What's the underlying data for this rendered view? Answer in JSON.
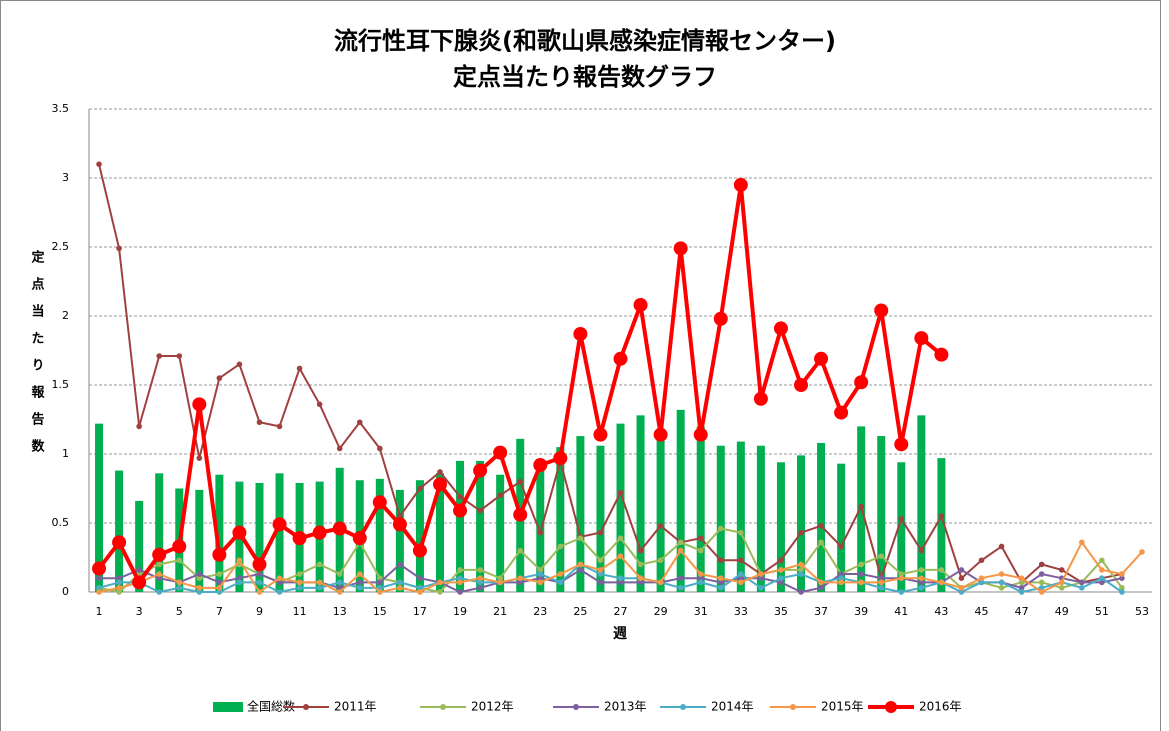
{
  "chart_data": {
    "type": "combo",
    "title": "流行性耳下腺炎(和歌山県感染症情報センター)",
    "subtitle": "定点当たり報告数グラフ",
    "y_label": "定点当たり報告数",
    "x_label": "週",
    "categories": [
      "1",
      null,
      "3",
      null,
      "5",
      null,
      "7",
      null,
      "9",
      null,
      "11",
      null,
      "13",
      null,
      "15",
      null,
      "17",
      null,
      "19",
      null,
      "21",
      null,
      "23",
      null,
      "25",
      null,
      "27",
      null,
      "29",
      null,
      "31",
      null,
      "33",
      null,
      "35",
      null,
      "37",
      null,
      "39",
      null,
      "41",
      null,
      "43",
      null,
      "45",
      null,
      "47",
      null,
      "49",
      null,
      "51",
      null,
      "53"
    ],
    "ylim": [
      0,
      3.5
    ],
    "yticks": [
      0,
      0.5,
      1,
      1.5,
      2,
      2.5,
      3,
      3.5
    ],
    "grid": true,
    "series": [
      {
        "name": "全国総数",
        "type": "bar",
        "color": "#00b050",
        "values": [
          1.22,
          0.88,
          0.66,
          0.86,
          0.75,
          0.74,
          0.85,
          0.8,
          0.79,
          0.86,
          0.79,
          0.8,
          0.9,
          0.81,
          0.82,
          0.74,
          0.81,
          0.86,
          0.95,
          0.95,
          0.85,
          1.11,
          0.95,
          1.05,
          1.13,
          1.06,
          1.22,
          1.28,
          1.14,
          1.32,
          1.2,
          1.06,
          1.09,
          1.06,
          0.94,
          0.99,
          1.08,
          0.93,
          1.2,
          1.13,
          0.94,
          1.28,
          0.97,
          null,
          null,
          null,
          null,
          null,
          null,
          null,
          null,
          null,
          null
        ]
      },
      {
        "name": "2011年",
        "type": "line",
        "color": "#a0413f",
        "values": [
          3.1,
          2.49,
          1.2,
          1.71,
          1.71,
          0.97,
          1.55,
          1.65,
          1.23,
          1.2,
          1.62,
          1.36,
          1.04,
          1.23,
          1.04,
          0.55,
          0.75,
          0.87,
          0.69,
          0.59,
          0.7,
          0.8,
          0.43,
          0.95,
          0.4,
          0.43,
          0.72,
          0.3,
          0.48,
          0.36,
          0.39,
          0.23,
          0.23,
          0.13,
          0.23,
          0.43,
          0.48,
          0.33,
          0.62,
          0.1,
          0.53,
          0.3,
          0.55,
          0.1,
          0.23,
          0.33,
          0.07,
          0.2,
          0.16,
          0.07,
          0.1,
          0.13,
          null
        ]
      },
      {
        "name": "2012年",
        "type": "line",
        "color": "#9bbb59",
        "values": [
          0.03,
          0.0,
          0.13,
          0.2,
          0.23,
          0.1,
          0.13,
          0.2,
          0.13,
          0.07,
          0.13,
          0.2,
          0.13,
          0.36,
          0.1,
          0.07,
          0.03,
          0.0,
          0.16,
          0.16,
          0.1,
          0.3,
          0.16,
          0.33,
          0.39,
          0.23,
          0.39,
          0.2,
          0.23,
          0.36,
          0.3,
          0.46,
          0.43,
          0.13,
          0.16,
          0.16,
          0.36,
          0.13,
          0.2,
          0.26,
          0.13,
          0.16,
          0.16,
          0.03,
          0.07,
          0.03,
          0.07,
          0.07,
          0.03,
          0.07,
          0.23,
          0.03,
          null
        ]
      },
      {
        "name": "2013年",
        "type": "line",
        "color": "#7d5fa0",
        "values": [
          0.1,
          0.1,
          0.16,
          0.1,
          0.07,
          0.13,
          0.07,
          0.1,
          0.13,
          0.07,
          0.07,
          0.07,
          0.03,
          0.07,
          0.07,
          0.2,
          0.1,
          0.07,
          0.0,
          0.03,
          0.07,
          0.07,
          0.1,
          0.07,
          0.16,
          0.07,
          0.07,
          0.07,
          0.07,
          0.1,
          0.1,
          0.07,
          0.1,
          0.1,
          0.07,
          0.0,
          0.03,
          0.13,
          0.13,
          0.1,
          0.1,
          0.07,
          0.07,
          0.16,
          0.07,
          0.07,
          0.03,
          0.13,
          0.1,
          0.07,
          0.07,
          0.1,
          null
        ]
      },
      {
        "name": "2014年",
        "type": "line",
        "color": "#4bacc6",
        "values": [
          0.03,
          0.07,
          0.07,
          0.0,
          0.03,
          0.0,
          0.0,
          0.07,
          0.07,
          0.0,
          0.03,
          0.03,
          0.07,
          0.03,
          0.03,
          0.07,
          0.03,
          0.07,
          0.1,
          0.07,
          0.07,
          0.1,
          0.13,
          0.07,
          0.2,
          0.13,
          0.1,
          0.1,
          0.07,
          0.03,
          0.07,
          0.03,
          0.13,
          0.03,
          0.1,
          0.13,
          0.07,
          0.1,
          0.07,
          0.03,
          0.0,
          0.03,
          0.07,
          0.0,
          0.07,
          0.07,
          0.0,
          0.03,
          0.07,
          0.03,
          0.1,
          0.0,
          null
        ]
      },
      {
        "name": "2015年",
        "type": "line",
        "color": "#f79646",
        "values": [
          0.0,
          0.03,
          0.07,
          0.13,
          0.07,
          0.03,
          0.03,
          0.23,
          0.0,
          0.1,
          0.07,
          0.07,
          0.0,
          0.13,
          0.0,
          0.03,
          0.0,
          0.07,
          0.07,
          0.1,
          0.07,
          0.1,
          0.07,
          0.13,
          0.2,
          0.16,
          0.26,
          0.1,
          0.07,
          0.3,
          0.13,
          0.1,
          0.07,
          0.13,
          0.16,
          0.2,
          0.07,
          0.07,
          0.07,
          0.07,
          0.1,
          0.1,
          0.07,
          0.03,
          0.1,
          0.13,
          0.1,
          0.0,
          0.07,
          0.36,
          0.16,
          0.13,
          0.29
        ]
      },
      {
        "name": "2016年",
        "type": "line",
        "color": "#ff0000",
        "values": [
          0.17,
          0.36,
          0.07,
          0.27,
          0.33,
          1.36,
          0.27,
          0.43,
          0.2,
          0.49,
          0.39,
          0.43,
          0.46,
          0.39,
          0.65,
          0.49,
          0.3,
          0.78,
          0.59,
          0.88,
          1.01,
          0.56,
          0.92,
          0.97,
          1.87,
          1.14,
          1.69,
          2.08,
          1.14,
          2.49,
          1.14,
          1.98,
          2.95,
          1.4,
          1.91,
          1.5,
          1.69,
          1.3,
          1.52,
          2.04,
          1.07,
          1.84,
          1.72,
          null,
          null,
          null,
          null,
          null,
          null,
          null,
          null,
          null,
          null
        ]
      }
    ]
  }
}
